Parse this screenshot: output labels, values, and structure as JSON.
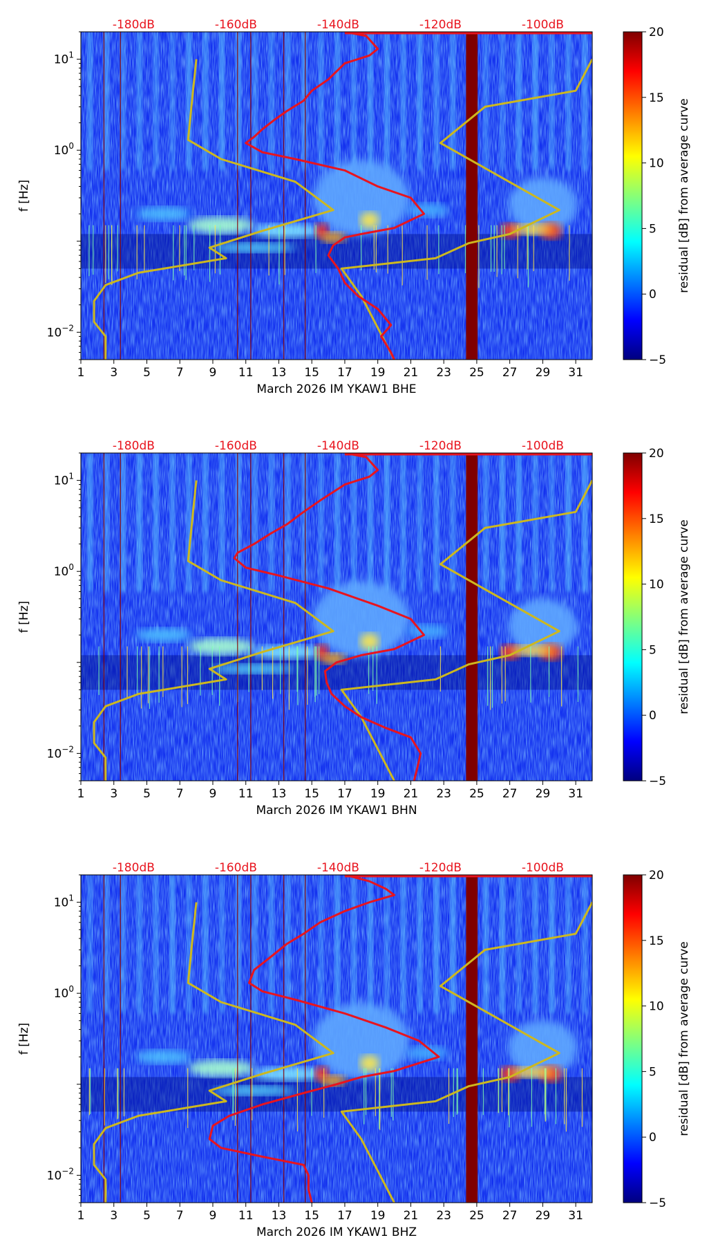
{
  "colormap": "jet",
  "colors": {
    "red_curve": "#e8141e",
    "yellow_curve": "#cdb81f",
    "db_label": "#e8141e"
  },
  "chart_data": [
    {
      "type": "heatmap",
      "component": "BHE",
      "xlabel": "March 2026 IM YKAW1  BHE",
      "ylabel": "f [Hz]",
      "xlim": [
        1,
        32
      ],
      "ylim": [
        0.005,
        20
      ],
      "x_ticks": [
        "1",
        "3",
        "5",
        "7",
        "9",
        "11",
        "13",
        "15",
        "17",
        "19",
        "21",
        "23",
        "25",
        "27",
        "29",
        "31"
      ],
      "y_ticks": [
        {
          "value": 0.01,
          "base": "10",
          "exp": "−2"
        },
        {
          "value": 1,
          "base": "10",
          "exp": "0"
        },
        {
          "value": 10,
          "base": "10",
          "exp": "1"
        }
      ],
      "db_labels": [
        {
          "x": 4.2,
          "text": "-180dB"
        },
        {
          "x": 10.4,
          "text": "-160dB"
        },
        {
          "x": 16.6,
          "text": "-140dB"
        },
        {
          "x": 22.8,
          "text": "-120dB"
        },
        {
          "x": 29.0,
          "text": "-100dB"
        }
      ],
      "colorbar": {
        "label": "residual [dB] from average curve",
        "range": [
          -5,
          20
        ],
        "ticks": [
          "−5",
          "0",
          "5",
          "10",
          "15",
          "20"
        ]
      },
      "red_curve": [
        [
          17,
          20
        ],
        [
          18.3,
          18
        ],
        [
          19,
          13
        ],
        [
          18.5,
          11
        ],
        [
          17,
          9
        ],
        [
          16,
          6
        ],
        [
          15,
          4.5
        ],
        [
          14.5,
          3.5
        ],
        [
          13.5,
          2.7
        ],
        [
          12.8,
          2.2
        ],
        [
          12,
          1.7
        ],
        [
          11.5,
          1.4
        ],
        [
          11,
          1.2
        ],
        [
          12,
          0.95
        ],
        [
          14,
          0.8
        ],
        [
          17,
          0.6
        ],
        [
          19,
          0.4
        ],
        [
          21,
          0.3
        ],
        [
          21.8,
          0.2
        ],
        [
          20,
          0.14
        ],
        [
          18,
          0.12
        ],
        [
          17,
          0.11
        ],
        [
          16.3,
          0.09
        ],
        [
          16,
          0.07
        ],
        [
          16.6,
          0.05
        ],
        [
          17,
          0.035
        ],
        [
          17.8,
          0.025
        ],
        [
          19,
          0.018
        ],
        [
          19.8,
          0.012
        ],
        [
          19.2,
          0.009
        ],
        [
          19.8,
          0.006
        ],
        [
          20,
          0.005
        ]
      ],
      "yellow_curve": [
        [
          8,
          10
        ],
        [
          7.8,
          4.5
        ],
        [
          7.5,
          1.3
        ],
        [
          9.5,
          0.8
        ],
        [
          14,
          0.45
        ],
        [
          16.3,
          0.22
        ],
        [
          12,
          0.13
        ],
        [
          8.8,
          0.085
        ],
        [
          9.8,
          0.065
        ],
        [
          4.5,
          0.045
        ],
        [
          2.5,
          0.033
        ],
        [
          1.8,
          0.022
        ],
        [
          1.8,
          0.013
        ],
        [
          2.5,
          0.009
        ],
        [
          2.5,
          0.005
        ]
      ],
      "yellow_curve_right": [
        [
          32,
          10
        ],
        [
          31,
          4.5
        ],
        [
          25.5,
          3
        ],
        [
          22.8,
          1.2
        ],
        [
          30,
          0.22
        ],
        [
          27,
          0.12
        ],
        [
          24.5,
          0.095
        ],
        [
          22.5,
          0.065
        ],
        [
          16.8,
          0.05
        ],
        [
          18,
          0.025
        ],
        [
          20,
          0.005
        ]
      ]
    },
    {
      "type": "heatmap",
      "component": "BHN",
      "xlabel": "March 2026 IM YKAW1  BHN",
      "ylabel": "f [Hz]",
      "xlim": [
        1,
        32
      ],
      "ylim": [
        0.005,
        20
      ],
      "x_ticks": [
        "1",
        "3",
        "5",
        "7",
        "9",
        "11",
        "13",
        "15",
        "17",
        "19",
        "21",
        "23",
        "25",
        "27",
        "29",
        "31"
      ],
      "y_ticks": [
        {
          "value": 0.01,
          "base": "10",
          "exp": "−2"
        },
        {
          "value": 1,
          "base": "10",
          "exp": "0"
        },
        {
          "value": 10,
          "base": "10",
          "exp": "1"
        }
      ],
      "db_labels": [
        {
          "x": 4.2,
          "text": "-180dB"
        },
        {
          "x": 10.4,
          "text": "-160dB"
        },
        {
          "x": 16.6,
          "text": "-140dB"
        },
        {
          "x": 22.8,
          "text": "-120dB"
        },
        {
          "x": 29.0,
          "text": "-100dB"
        }
      ],
      "colorbar": {
        "label": "residual [dB] from average curve",
        "range": [
          -5,
          20
        ],
        "ticks": [
          "−5",
          "0",
          "5",
          "10",
          "15",
          "20"
        ]
      },
      "red_curve": [
        [
          17,
          20
        ],
        [
          18.3,
          18
        ],
        [
          19,
          13
        ],
        [
          18.5,
          11
        ],
        [
          17,
          9
        ],
        [
          15.5,
          6
        ],
        [
          14.5,
          4.5
        ],
        [
          13.5,
          3.3
        ],
        [
          12.5,
          2.6
        ],
        [
          11.5,
          2
        ],
        [
          10.5,
          1.6
        ],
        [
          10.3,
          1.4
        ],
        [
          11,
          1.1
        ],
        [
          13,
          0.9
        ],
        [
          16,
          0.65
        ],
        [
          19,
          0.42
        ],
        [
          21,
          0.3
        ],
        [
          21.8,
          0.2
        ],
        [
          20,
          0.14
        ],
        [
          18,
          0.12
        ],
        [
          16.5,
          0.1
        ],
        [
          15.8,
          0.08
        ],
        [
          15.9,
          0.06
        ],
        [
          16.2,
          0.045
        ],
        [
          17,
          0.033
        ],
        [
          18,
          0.025
        ],
        [
          19.5,
          0.019
        ],
        [
          21,
          0.015
        ],
        [
          21.6,
          0.01
        ],
        [
          21.4,
          0.007
        ],
        [
          21.2,
          0.005
        ]
      ],
      "yellow_curve": [
        [
          8,
          10
        ],
        [
          7.8,
          4.5
        ],
        [
          7.5,
          1.3
        ],
        [
          9.5,
          0.8
        ],
        [
          14,
          0.45
        ],
        [
          16.3,
          0.22
        ],
        [
          12,
          0.13
        ],
        [
          8.8,
          0.085
        ],
        [
          9.8,
          0.065
        ],
        [
          4.5,
          0.045
        ],
        [
          2.5,
          0.033
        ],
        [
          1.8,
          0.022
        ],
        [
          1.8,
          0.013
        ],
        [
          2.5,
          0.009
        ],
        [
          2.5,
          0.005
        ]
      ],
      "yellow_curve_right": [
        [
          32,
          10
        ],
        [
          31,
          4.5
        ],
        [
          25.5,
          3
        ],
        [
          22.8,
          1.2
        ],
        [
          30,
          0.22
        ],
        [
          27,
          0.12
        ],
        [
          24.5,
          0.095
        ],
        [
          22.5,
          0.065
        ],
        [
          16.8,
          0.05
        ],
        [
          18,
          0.025
        ],
        [
          20,
          0.005
        ]
      ]
    },
    {
      "type": "heatmap",
      "component": "BHZ",
      "xlabel": "March 2026 IM YKAW1  BHZ",
      "ylabel": "f [Hz]",
      "xlim": [
        1,
        32
      ],
      "ylim": [
        0.005,
        20
      ],
      "x_ticks": [
        "1",
        "3",
        "5",
        "7",
        "9",
        "11",
        "13",
        "15",
        "17",
        "19",
        "21",
        "23",
        "25",
        "27",
        "29",
        "31"
      ],
      "y_ticks": [
        {
          "value": 0.01,
          "base": "10",
          "exp": "−2"
        },
        {
          "value": 1,
          "base": "10",
          "exp": "0"
        },
        {
          "value": 10,
          "base": "10",
          "exp": "1"
        }
      ],
      "db_labels": [
        {
          "x": 4.2,
          "text": "-180dB"
        },
        {
          "x": 10.4,
          "text": "-160dB"
        },
        {
          "x": 16.6,
          "text": "-140dB"
        },
        {
          "x": 22.8,
          "text": "-120dB"
        },
        {
          "x": 29.0,
          "text": "-100dB"
        }
      ],
      "colorbar": {
        "label": "residual [dB] from average curve",
        "range": [
          -5,
          20
        ],
        "ticks": [
          "−5",
          "0",
          "5",
          "10",
          "15",
          "20"
        ]
      },
      "red_curve": [
        [
          17,
          20
        ],
        [
          18.5,
          17
        ],
        [
          19.5,
          14
        ],
        [
          20,
          12
        ],
        [
          18.5,
          10
        ],
        [
          17,
          8
        ],
        [
          15.5,
          6
        ],
        [
          14.5,
          4.5
        ],
        [
          13.5,
          3.5
        ],
        [
          12.5,
          2.5
        ],
        [
          11.5,
          1.8
        ],
        [
          11.2,
          1.3
        ],
        [
          12,
          1.05
        ],
        [
          14,
          0.85
        ],
        [
          17,
          0.6
        ],
        [
          19.5,
          0.42
        ],
        [
          21.5,
          0.3
        ],
        [
          22.7,
          0.2
        ],
        [
          20,
          0.14
        ],
        [
          18,
          0.12
        ],
        [
          16.5,
          0.1
        ],
        [
          14.5,
          0.08
        ],
        [
          12,
          0.06
        ],
        [
          10,
          0.045
        ],
        [
          9,
          0.035
        ],
        [
          8.8,
          0.025
        ],
        [
          9.5,
          0.02
        ],
        [
          12,
          0.016
        ],
        [
          14.5,
          0.013
        ],
        [
          14.8,
          0.01
        ],
        [
          14.8,
          0.007
        ],
        [
          15,
          0.005
        ]
      ],
      "yellow_curve": [
        [
          8,
          10
        ],
        [
          7.8,
          4.5
        ],
        [
          7.5,
          1.3
        ],
        [
          9.5,
          0.8
        ],
        [
          14,
          0.45
        ],
        [
          16.3,
          0.22
        ],
        [
          12,
          0.13
        ],
        [
          8.8,
          0.085
        ],
        [
          9.8,
          0.065
        ],
        [
          4.5,
          0.045
        ],
        [
          2.5,
          0.033
        ],
        [
          1.8,
          0.022
        ],
        [
          1.8,
          0.013
        ],
        [
          2.5,
          0.009
        ],
        [
          2.5,
          0.005
        ]
      ],
      "yellow_curve_right": [
        [
          32,
          10
        ],
        [
          31,
          4.5
        ],
        [
          25.5,
          3
        ],
        [
          22.8,
          1.2
        ],
        [
          30,
          0.22
        ],
        [
          27,
          0.12
        ],
        [
          24.5,
          0.095
        ],
        [
          22.5,
          0.065
        ],
        [
          16.8,
          0.05
        ],
        [
          18,
          0.025
        ],
        [
          20,
          0.005
        ]
      ]
    }
  ]
}
